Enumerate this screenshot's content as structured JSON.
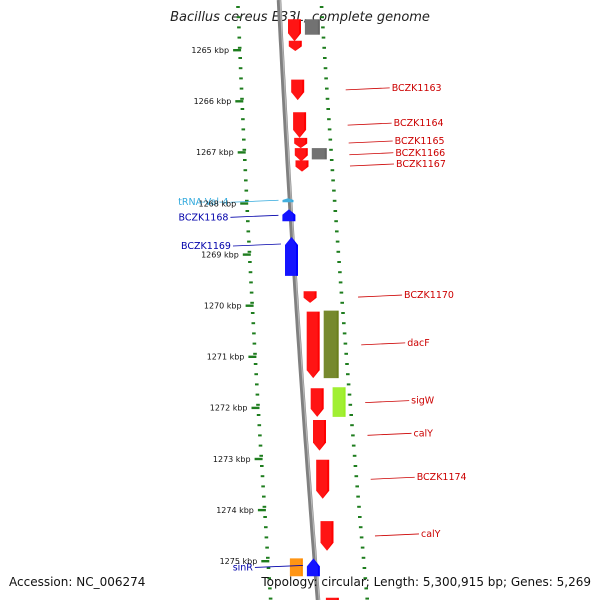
{
  "title": "Bacillus cereus E33L, complete genome",
  "footer": {
    "accession": "Accession: NC_006274",
    "topology": "Topology: circular; Length: 5,300,915 bp; Genes: 5,269"
  },
  "colors": {
    "backbone": "#808080",
    "tick_dots": "#1e7d1e",
    "reverse_gene": "#ff0000",
    "forward_gene": "#0000ff",
    "trna": "#33aadd",
    "gray_feature": "#666666",
    "olive_feature": "#6b7f1c",
    "lime_feature": "#99ee22",
    "orange_feature": "#ff8c00",
    "label_red": "#cc0000",
    "label_blue": "#0000aa"
  },
  "scale": {
    "unit": "kbp",
    "ticks": [
      "1265 kbp",
      "1266 kbp",
      "1267 kbp",
      "1268 kbp",
      "1269 kbp",
      "1270 kbp",
      "1271 kbp",
      "1272 kbp",
      "1273 kbp",
      "1274 kbp",
      "1275 kbp"
    ]
  },
  "features": [
    {
      "label": "",
      "kbp_start": 1264.4,
      "kbp_end": 1264.83,
      "strand": "-",
      "color_key": "reverse_gene"
    },
    {
      "label": "",
      "kbp_start": 1264.4,
      "kbp_end": 1264.7,
      "strand": "none",
      "color_key": "gray_feature"
    },
    {
      "label": "",
      "kbp_start": 1264.82,
      "kbp_end": 1265.02,
      "strand": "-",
      "color_key": "reverse_gene"
    },
    {
      "label": "BCZK1163",
      "kbp_start": 1265.58,
      "kbp_end": 1265.98,
      "strand": "-",
      "color_key": "reverse_gene"
    },
    {
      "label": "BCZK1164",
      "kbp_start": 1266.22,
      "kbp_end": 1266.72,
      "strand": "-",
      "color_key": "reverse_gene"
    },
    {
      "label": "BCZK1165",
      "kbp_start": 1266.72,
      "kbp_end": 1266.92,
      "strand": "-",
      "color_key": "reverse_gene"
    },
    {
      "label": "BCZK1166",
      "kbp_start": 1266.92,
      "kbp_end": 1267.18,
      "strand": "-",
      "color_key": "reverse_gene"
    },
    {
      "label": "",
      "kbp_start": 1266.92,
      "kbp_end": 1267.14,
      "strand": "none",
      "color_key": "gray_feature"
    },
    {
      "label": "BCZK1167",
      "kbp_start": 1267.16,
      "kbp_end": 1267.38,
      "strand": "-",
      "color_key": "reverse_gene"
    },
    {
      "label": "tRNA-Val-4",
      "kbp_start": 1267.9,
      "kbp_end": 1267.98,
      "strand": "+",
      "color_key": "trna"
    },
    {
      "label": "BCZK1168",
      "kbp_start": 1268.12,
      "kbp_end": 1268.35,
      "strand": "+",
      "color_key": "forward_gene"
    },
    {
      "label": "BCZK1169",
      "kbp_start": 1268.66,
      "kbp_end": 1269.42,
      "strand": "+",
      "color_key": "forward_gene"
    },
    {
      "label": "BCZK1170",
      "kbp_start": 1269.72,
      "kbp_end": 1269.95,
      "strand": "-",
      "color_key": "reverse_gene"
    },
    {
      "label": "dacF",
      "kbp_start": 1270.12,
      "kbp_end": 1271.42,
      "strand": "-",
      "color_key": "reverse_gene"
    },
    {
      "label": "",
      "kbp_start": 1270.1,
      "kbp_end": 1271.42,
      "strand": "none",
      "color_key": "olive_feature"
    },
    {
      "label": "sigW",
      "kbp_start": 1271.62,
      "kbp_end": 1272.18,
      "strand": "-",
      "color_key": "reverse_gene"
    },
    {
      "label": "",
      "kbp_start": 1271.6,
      "kbp_end": 1272.18,
      "strand": "none",
      "color_key": "lime_feature"
    },
    {
      "label": "calY",
      "kbp_start": 1272.24,
      "kbp_end": 1272.84,
      "strand": "-",
      "color_key": "reverse_gene"
    },
    {
      "label": "BCZK1174",
      "kbp_start": 1273.02,
      "kbp_end": 1273.78,
      "strand": "-",
      "color_key": "reverse_gene"
    },
    {
      "label": "calY",
      "kbp_start": 1274.22,
      "kbp_end": 1274.8,
      "strand": "-",
      "color_key": "reverse_gene"
    },
    {
      "label": "",
      "kbp_start": 1274.95,
      "kbp_end": 1275.3,
      "strand": "none",
      "color_key": "orange_feature"
    },
    {
      "label": "sinR",
      "kbp_start": 1274.95,
      "kbp_end": 1275.3,
      "strand": "+",
      "color_key": "forward_gene"
    },
    {
      "label": "",
      "kbp_start": 1275.72,
      "kbp_end": 1276.0,
      "strand": "-",
      "color_key": "reverse_gene"
    }
  ]
}
